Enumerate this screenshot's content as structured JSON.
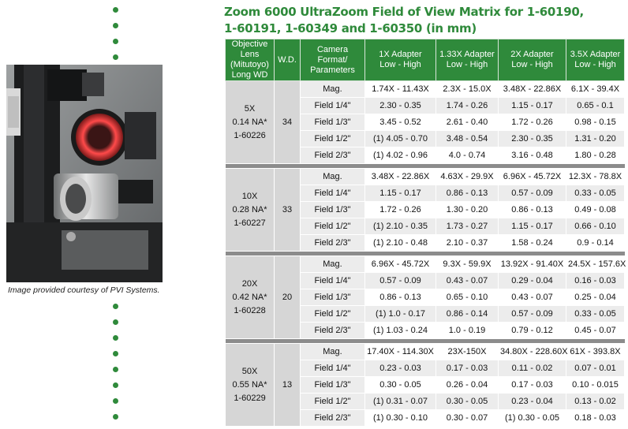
{
  "title": {
    "line1": "Zoom 6000 UltraZoom Field of View Matrix for 1-60190,",
    "line2": "1-60191, 1-60349 and 1-60350 (in mm)"
  },
  "caption": "Image provided courtesy of PVI Systems.",
  "table": {
    "headers": [
      [
        "Objective",
        "Lens",
        "(Mitutoyo)",
        "Long WD"
      ],
      [
        "W.D."
      ],
      [
        "Camera Format/",
        "Parameters"
      ],
      [
        "1X Adapter",
        "Low - High"
      ],
      [
        "1.33X Adapter",
        "Low - High"
      ],
      [
        "2X Adapter",
        "Low - High"
      ],
      [
        "3.5X Adapter",
        "Low - High"
      ]
    ],
    "groups": [
      {
        "objective": [
          "5X",
          "0.14 NA*",
          "1-60226"
        ],
        "wd": "34",
        "rows": [
          {
            "param": "Mag.",
            "values": [
              "1.74X - 11.43X",
              "2.3X - 15.0X",
              "3.48X - 22.86X",
              "6.1X - 39.4X"
            ]
          },
          {
            "param": "Field 1/4\"",
            "values": [
              "2.30 - 0.35",
              "1.74 - 0.26",
              "1.15 - 0.17",
              "0.65 - 0.1"
            ]
          },
          {
            "param": "Field 1/3\"",
            "values": [
              "3.45 - 0.52",
              "2.61 - 0.40",
              "1.72 - 0.26",
              "0.98 - 0.15"
            ]
          },
          {
            "param": "Field 1/2\"",
            "values": [
              "(1) 4.05 - 0.70",
              "3.48 - 0.54",
              "2.30 - 0.35",
              "1.31 - 0.20"
            ]
          },
          {
            "param": "Field 2/3\"",
            "values": [
              "(1) 4.02 - 0.96",
              "4.0 - 0.74",
              "3.16 - 0.48",
              "1.80 - 0.28"
            ]
          }
        ]
      },
      {
        "objective": [
          "10X",
          "0.28 NA*",
          "1-60227"
        ],
        "wd": "33",
        "rows": [
          {
            "param": "Mag.",
            "values": [
              "3.48X - 22.86X",
              "4.63X - 29.9X",
              "6.96X - 45.72X",
              "12.3X - 78.8X"
            ]
          },
          {
            "param": "Field 1/4\"",
            "values": [
              "1.15 - 0.17",
              "0.86 - 0.13",
              "0.57 - 0.09",
              "0.33 - 0.05"
            ]
          },
          {
            "param": "Field 1/3\"",
            "values": [
              "1.72 - 0.26",
              "1.30 - 0.20",
              "0.86 - 0.13",
              "0.49 - 0.08"
            ]
          },
          {
            "param": "Field 1/2\"",
            "values": [
              "(1) 2.10 - 0.35",
              "1.73 - 0.27",
              "1.15 - 0.17",
              "0.66 - 0.10"
            ]
          },
          {
            "param": "Field 2/3\"",
            "values": [
              "(1) 2.10 - 0.48",
              "2.10 - 0.37",
              "1.58 - 0.24",
              "0.9 - 0.14"
            ]
          }
        ]
      },
      {
        "objective": [
          "20X",
          "0.42 NA*",
          "1-60228"
        ],
        "wd": "20",
        "rows": [
          {
            "param": "Mag.",
            "values": [
              "6.96X - 45.72X",
              "9.3X - 59.9X",
              "13.92X - 91.40X",
              "24.5X - 157.6X"
            ]
          },
          {
            "param": "Field 1/4\"",
            "values": [
              "0.57 - 0.09",
              "0.43 - 0.07",
              "0.29 - 0.04",
              "0.16 - 0.03"
            ]
          },
          {
            "param": "Field 1/3\"",
            "values": [
              "0.86 - 0.13",
              "0.65 - 0.10",
              "0.43 - 0.07",
              "0.25 - 0.04"
            ]
          },
          {
            "param": "Field 1/2\"",
            "values": [
              "(1) 1.0 - 0.17",
              "0.86 - 0.14",
              "0.57 - 0.09",
              "0.33 - 0.05"
            ]
          },
          {
            "param": "Field 2/3\"",
            "values": [
              "(1) 1.03 - 0.24",
              "1.0 - 0.19",
              "0.79 - 0.12",
              "0.45 - 0.07"
            ]
          }
        ]
      },
      {
        "objective": [
          "50X",
          "0.55 NA*",
          "1-60229"
        ],
        "wd": "13",
        "rows": [
          {
            "param": "Mag.",
            "values": [
              "17.40X - 114.30X",
              "23X-150X",
              "34.80X - 228.60X",
              "61X - 393.8X"
            ]
          },
          {
            "param": "Field 1/4\"",
            "values": [
              "0.23 - 0.03",
              "0.17 - 0.03",
              "0.11 - 0.02",
              "0.07 - 0.01"
            ]
          },
          {
            "param": "Field 1/3\"",
            "values": [
              "0.30 - 0.05",
              "0.26 - 0.04",
              "0.17 - 0.03",
              "0.10 - 0.015"
            ]
          },
          {
            "param": "Field 1/2\"",
            "values": [
              "(1) 0.31 - 0.07",
              "0.30 - 0.05",
              "0.23 - 0.04",
              "0.13 - 0.02"
            ]
          },
          {
            "param": "Field 2/3\"",
            "values": [
              "(1) 0.30 - 0.10",
              "0.30 - 0.07",
              "(1) 0.30 - 0.05",
              "0.18 - 0.03"
            ]
          }
        ]
      }
    ]
  },
  "colors": {
    "accent": "#2f8a3b",
    "band_dark": "#d6d6d6",
    "band_light": "#ececec",
    "separator": "#8c8c8c"
  }
}
